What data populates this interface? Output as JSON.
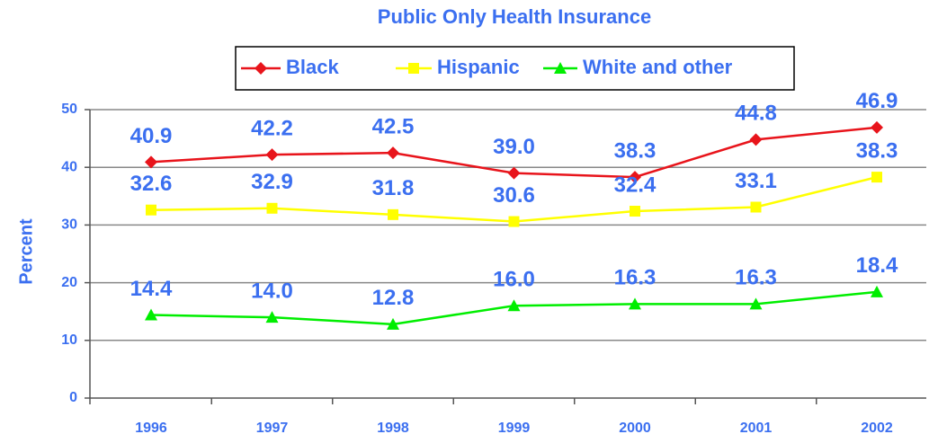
{
  "chart_data": {
    "type": "line",
    "title": "Public Only Health Insurance",
    "y_label": "Percent",
    "categories": [
      "1996",
      "1997",
      "1998",
      "1999",
      "2000",
      "2001",
      "2002"
    ],
    "series": [
      {
        "name": "Black",
        "color": "#e8141b",
        "marker": "diamond",
        "values": [
          40.9,
          42.2,
          42.5,
          39.0,
          38.3,
          44.8,
          46.9
        ],
        "value_labels": [
          "40.9",
          "42.2",
          "42.5",
          "39.0",
          "38.3",
          "44.8",
          "46.9"
        ]
      },
      {
        "name": "Hispanic",
        "color": "#ffff00",
        "marker": "square",
        "values": [
          32.6,
          32.9,
          31.8,
          30.6,
          32.4,
          33.1,
          38.3
        ],
        "value_labels": [
          "32.6",
          "32.9",
          "31.8",
          "30.6",
          "32.4",
          "33.1",
          "38.3"
        ]
      },
      {
        "name": "White and other",
        "color": "#00ee00",
        "marker": "triangle",
        "values": [
          14.4,
          14.0,
          12.8,
          16.0,
          16.3,
          16.3,
          18.4
        ],
        "value_labels": [
          "14.4",
          "14.0",
          "12.8",
          "16.0",
          "16.3",
          "16.3",
          "18.4"
        ]
      }
    ],
    "ylim": [
      0,
      50
    ],
    "yticks": [
      0,
      10,
      20,
      30,
      40,
      50
    ],
    "grid": true,
    "legend": "top"
  }
}
